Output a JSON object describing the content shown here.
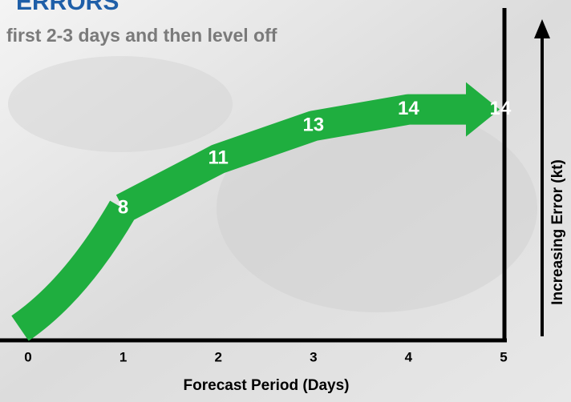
{
  "chart_data": {
    "type": "line",
    "title": "ERRORS",
    "subtitle": "first 2-3 days and then level off",
    "x": [
      1,
      2,
      3,
      4,
      5
    ],
    "values": [
      8,
      11,
      13,
      14,
      14
    ],
    "color": "#1fae3f",
    "xlim": [
      0,
      5
    ],
    "xticks": [
      0,
      1,
      2,
      3,
      4,
      5
    ],
    "ylim": [
      0,
      20
    ],
    "x_label": "Forecast Period (Days)",
    "y_label": "Increasing Error (kt)"
  }
}
